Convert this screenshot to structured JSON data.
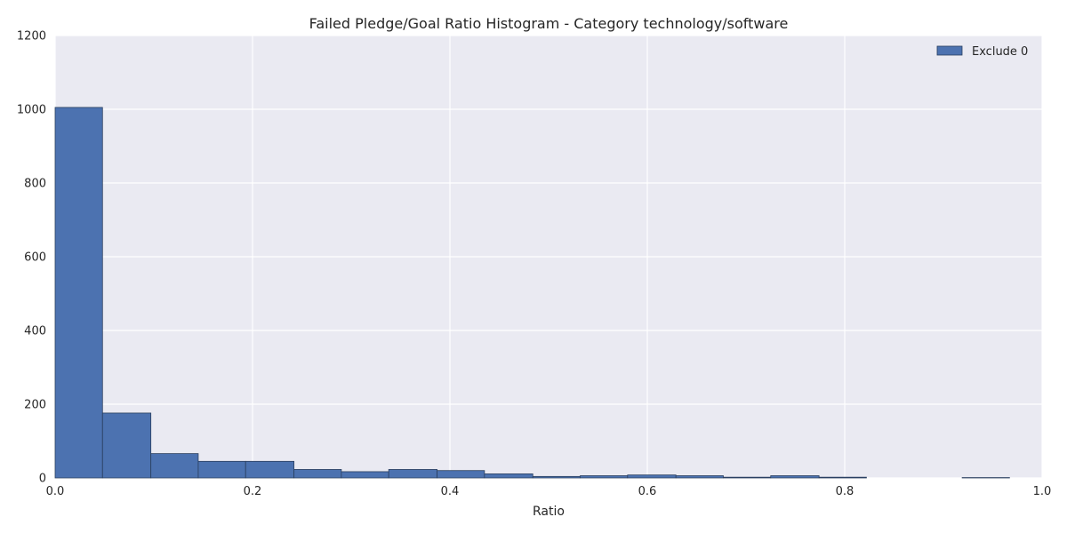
{
  "chart_data": {
    "type": "bar",
    "title": "Failed Pledge/Goal Ratio Histogram - Category technology/software",
    "xlabel": "Ratio",
    "ylabel": "",
    "xlim": [
      0.0,
      1.0
    ],
    "ylim": [
      0,
      1200
    ],
    "xticks": [
      "0.0",
      "0.2",
      "0.4",
      "0.6",
      "0.8",
      "1.0"
    ],
    "yticks": [
      "0",
      "200",
      "400",
      "600",
      "800",
      "1000",
      "1200"
    ],
    "grid": true,
    "legend_position": "top-right",
    "series": [
      {
        "name": "Exclude 0",
        "color": "#4c72b0",
        "bins": [
          {
            "x0": 0.0,
            "x1": 0.048,
            "value": 1005
          },
          {
            "x0": 0.048,
            "x1": 0.097,
            "value": 176
          },
          {
            "x0": 0.097,
            "x1": 0.145,
            "value": 66
          },
          {
            "x0": 0.145,
            "x1": 0.193,
            "value": 45
          },
          {
            "x0": 0.193,
            "x1": 0.242,
            "value": 45
          },
          {
            "x0": 0.242,
            "x1": 0.29,
            "value": 23
          },
          {
            "x0": 0.29,
            "x1": 0.338,
            "value": 17
          },
          {
            "x0": 0.338,
            "x1": 0.387,
            "value": 23
          },
          {
            "x0": 0.387,
            "x1": 0.435,
            "value": 20
          },
          {
            "x0": 0.435,
            "x1": 0.484,
            "value": 11
          },
          {
            "x0": 0.484,
            "x1": 0.532,
            "value": 4
          },
          {
            "x0": 0.532,
            "x1": 0.58,
            "value": 6
          },
          {
            "x0": 0.58,
            "x1": 0.629,
            "value": 8
          },
          {
            "x0": 0.629,
            "x1": 0.677,
            "value": 6
          },
          {
            "x0": 0.677,
            "x1": 0.725,
            "value": 2
          },
          {
            "x0": 0.725,
            "x1": 0.774,
            "value": 6
          },
          {
            "x0": 0.774,
            "x1": 0.822,
            "value": 2
          },
          {
            "x0": 0.822,
            "x1": 0.87,
            "value": 0
          },
          {
            "x0": 0.87,
            "x1": 0.919,
            "value": 0
          },
          {
            "x0": 0.919,
            "x1": 0.967,
            "value": 1
          }
        ]
      }
    ]
  }
}
